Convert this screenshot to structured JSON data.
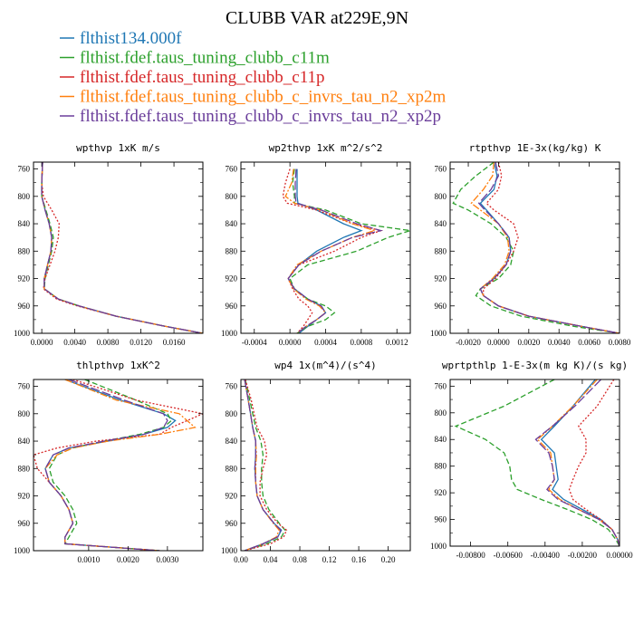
{
  "title": "CLUBB VAR at229E,9N",
  "legend": [
    {
      "label": "flthist134.000f",
      "color": "#1f77b4",
      "dash": ""
    },
    {
      "label": "flthist.fdef.taus_tuning_clubb_c11m",
      "color": "#2ca02c",
      "dash": "6,3"
    },
    {
      "label": "flthist.fdef.taus_tuning_clubb_c11p",
      "color": "#d62728",
      "dash": "2,2"
    },
    {
      "label": "flthist.fdef.taus_tuning_clubb_c_invrs_tau_n2_xp2m",
      "color": "#ff7f0e",
      "dash": "8,2,2,2"
    },
    {
      "label": "flthist.fdef.taus_tuning_clubb_c_invrs_tau_n2_xp2p",
      "color": "#6a3d9a",
      "dash": "10,3"
    }
  ],
  "chart_data": [
    {
      "type": "line",
      "title": "wpthvp  1xK m/s",
      "xlim": [
        -0.001,
        0.0195
      ],
      "ylim": [
        1000,
        750
      ],
      "xticks": [
        "0.0000",
        "0.0040",
        "0.0080",
        "0.0120",
        "0.0160"
      ],
      "yticks": [
        "760",
        "800",
        "840",
        "880",
        "920",
        "960",
        "1000"
      ],
      "y": [
        750,
        780,
        800,
        820,
        840,
        860,
        880,
        900,
        920,
        935,
        950,
        960,
        975,
        990,
        1000
      ],
      "series": [
        {
          "name": "flthist134.000f",
          "x": [
            0.0001,
            0.0,
            0.0,
            0.0004,
            0.0009,
            0.0012,
            0.0011,
            0.0007,
            0.0003,
            0.0003,
            0.002,
            0.0045,
            0.009,
            0.015,
            0.0195
          ]
        },
        {
          "name": "flthist.fdef.taus_tuning_clubb_c11m",
          "x": [
            0.0001,
            0.0,
            0.0,
            0.0005,
            0.001,
            0.0014,
            0.0012,
            0.0008,
            0.0004,
            0.0003,
            0.002,
            0.0045,
            0.009,
            0.015,
            0.0195
          ]
        },
        {
          "name": "flthist.fdef.taus_tuning_clubb_c11p",
          "x": [
            0.0001,
            0.0,
            0.0002,
            0.0012,
            0.0021,
            0.002,
            0.0016,
            0.001,
            0.0004,
            0.0002,
            0.0018,
            0.0043,
            0.009,
            0.015,
            0.0195
          ]
        },
        {
          "name": "flthist.fdef.taus_tuning_clubb_c_invrs_tau_n2_xp2m",
          "x": [
            0.0001,
            0.0,
            0.0,
            0.0004,
            0.0009,
            0.0012,
            0.0011,
            0.0007,
            0.0003,
            0.0003,
            0.002,
            0.0045,
            0.009,
            0.015,
            0.0195
          ]
        },
        {
          "name": "flthist.fdef.taus_tuning_clubb_c_invrs_tau_n2_xp2p",
          "x": [
            0.0001,
            0.0,
            0.0,
            0.0004,
            0.0009,
            0.0012,
            0.0011,
            0.0007,
            0.0003,
            0.0003,
            0.002,
            0.0045,
            0.009,
            0.015,
            0.0195
          ]
        }
      ]
    },
    {
      "type": "line",
      "title": "wp2thvp  1xK m^2/s^2",
      "xlim": [
        -0.00055,
        0.00135
      ],
      "ylim": [
        1000,
        750
      ],
      "xticks": [
        "-0.0004",
        "0.0000",
        "0.0004",
        "0.0008",
        "0.0012"
      ],
      "yticks": [
        "760",
        "800",
        "840",
        "880",
        "920",
        "960",
        "1000"
      ],
      "y": [
        760,
        780,
        800,
        810,
        820,
        840,
        850,
        860,
        880,
        900,
        920,
        935,
        950,
        960,
        970,
        980,
        990,
        1000
      ],
      "series": [
        {
          "name": "flthist134.000f",
          "x": [
            8e-05,
            8e-05,
            8e-05,
            9e-05,
            0.0003,
            0.0006,
            0.0008,
            0.0006,
            0.0003,
            0.0001,
            -2e-05,
            5e-05,
            0.0002,
            0.00035,
            0.0004,
            0.0003,
            0.0002,
            0.0001
          ]
        },
        {
          "name": "flthist.fdef.taus_tuning_clubb_c11m",
          "x": [
            5e-05,
            3e-05,
            5e-05,
            5e-05,
            0.0004,
            0.0008,
            0.00135,
            0.0011,
            0.00075,
            0.0002,
            0.0,
            5e-05,
            0.0002,
            0.0004,
            0.0005,
            0.0004,
            0.0002,
            8e-05
          ]
        },
        {
          "name": "flthist.fdef.taus_tuning_clubb_c11p",
          "x": [
            0.0,
            -5e-05,
            -8e-05,
            -3e-05,
            0.0003,
            0.0007,
            0.00102,
            0.0008,
            0.0005,
            0.0001,
            -2e-05,
            3e-05,
            0.0001,
            0.0002,
            0.00025,
            0.0002,
            0.00015,
            8e-05
          ]
        },
        {
          "name": "flthist.fdef.taus_tuning_clubb_c_invrs_tau_n2_xp2m",
          "x": [
            4e-05,
            2e-05,
            -5e-05,
            5e-05,
            0.00035,
            0.0007,
            0.00095,
            0.0007,
            0.00035,
            8e-05,
            -2e-05,
            4e-05,
            0.00018,
            0.00033,
            0.0004,
            0.0003,
            0.00018,
            8e-05
          ]
        },
        {
          "name": "flthist.fdef.taus_tuning_clubb_c_invrs_tau_n2_xp2p",
          "x": [
            7e-05,
            6e-05,
            6e-05,
            7e-05,
            0.00035,
            0.00075,
            0.00102,
            0.0007,
            0.00035,
            0.0001,
            -2e-05,
            5e-05,
            0.0002,
            0.00035,
            0.0004,
            0.0003,
            0.00018,
            8e-05
          ]
        }
      ]
    },
    {
      "type": "line",
      "title": "rtpthvp  1E-3x(kg/kg) K",
      "xlim": [
        -0.0032,
        0.008
      ],
      "ylim": [
        1000,
        750
      ],
      "xticks": [
        "-0.0020",
        "0.0000",
        "0.0020",
        "0.0040",
        "0.0060",
        "0.0080"
      ],
      "yticks": [
        "760",
        "800",
        "840",
        "880",
        "920",
        "960",
        "1000"
      ],
      "y": [
        750,
        770,
        790,
        810,
        820,
        840,
        860,
        880,
        900,
        920,
        935,
        945,
        960,
        975,
        990,
        1000
      ],
      "series": [
        {
          "name": "flthist134.000f",
          "x": [
            -0.0003,
            -0.0001,
            -0.0003,
            -0.0012,
            -0.0008,
            0.0,
            0.0007,
            0.0008,
            0.0005,
            -0.0003,
            -0.0012,
            -0.001,
            0.0,
            0.002,
            0.0055,
            0.008
          ]
        },
        {
          "name": "flthist.fdef.taus_tuning_clubb_c11m",
          "x": [
            -0.0003,
            -0.0015,
            -0.0025,
            -0.003,
            -0.002,
            -0.0005,
            0.0005,
            0.001,
            0.0008,
            0.0,
            -0.0012,
            -0.0015,
            -0.0005,
            0.0015,
            0.005,
            0.008
          ]
        },
        {
          "name": "flthist.fdef.taus_tuning_clubb_c11p",
          "x": [
            0.0,
            0.0002,
            0.0,
            -0.0008,
            -0.0003,
            0.001,
            0.0013,
            0.001,
            0.0005,
            -0.0002,
            -0.001,
            -0.001,
            0.0,
            0.002,
            0.0055,
            0.008
          ]
        },
        {
          "name": "flthist.fdef.taus_tuning_clubb_c_invrs_tau_n2_xp2m",
          "x": [
            -0.0003,
            -0.0004,
            -0.001,
            -0.0018,
            -0.0012,
            0.0,
            0.0006,
            0.0007,
            0.0004,
            -0.0004,
            -0.0012,
            -0.001,
            0.0,
            0.002,
            0.0055,
            0.008
          ]
        },
        {
          "name": "flthist.fdef.taus_tuning_clubb_c_invrs_tau_n2_xp2p",
          "x": [
            -0.0002,
            0.0,
            -0.0005,
            -0.0013,
            -0.0009,
            0.0,
            0.0007,
            0.0008,
            0.0005,
            -0.0003,
            -0.0012,
            -0.001,
            0.0,
            0.002,
            0.0055,
            0.008
          ]
        }
      ]
    },
    {
      "type": "line",
      "title": "thlpthvp  1xK^2",
      "xlim": [
        -0.0004,
        0.0039
      ],
      "ylim": [
        1000,
        750
      ],
      "xticks": [
        "0.0010",
        "0.0020",
        "0.0030"
      ],
      "yticks": [
        "760",
        "800",
        "840",
        "880",
        "920",
        "960",
        "1000"
      ],
      "y": [
        750,
        780,
        800,
        810,
        820,
        830,
        840,
        850,
        860,
        880,
        900,
        920,
        940,
        960,
        980,
        990,
        1000
      ],
      "series": [
        {
          "name": "flthist134.000f",
          "x": [
            0.0004,
            0.0018,
            0.0029,
            0.0032,
            0.003,
            0.0024,
            0.0015,
            0.0005,
            0.0001,
            -0.0001,
            0.0,
            0.0003,
            0.0005,
            0.0006,
            0.0004,
            0.0004,
            0.0028
          ]
        },
        {
          "name": "flthist.fdef.taus_tuning_clubb_c11m",
          "x": [
            0.0009,
            0.0022,
            0.003,
            0.0031,
            0.0029,
            0.0023,
            0.0014,
            0.0006,
            0.0002,
            0.0,
            0.0001,
            0.0004,
            0.0006,
            0.0007,
            0.0005,
            0.0004,
            0.0028
          ]
        },
        {
          "name": "flthist.fdef.taus_tuning_clubb_c11p",
          "x": [
            0.0006,
            0.0022,
            0.0039,
            0.0035,
            0.0031,
            0.0028,
            0.0012,
            0.0002,
            -0.0004,
            -0.0003,
            0.0,
            0.0003,
            0.0005,
            0.0006,
            0.0004,
            0.0004,
            0.0028
          ]
        },
        {
          "name": "flthist.fdef.taus_tuning_clubb_c_invrs_tau_n2_xp2m",
          "x": [
            0.0004,
            0.0017,
            0.0033,
            0.0035,
            0.0037,
            0.0028,
            0.0015,
            0.0006,
            0.0002,
            -0.0001,
            0.0,
            0.0003,
            0.0005,
            0.0006,
            0.0004,
            0.0004,
            0.0028
          ]
        },
        {
          "name": "flthist.fdef.taus_tuning_clubb_c_invrs_tau_n2_xp2p",
          "x": [
            0.0005,
            0.0019,
            0.0029,
            0.003,
            0.0029,
            0.0024,
            0.0014,
            0.0005,
            0.0001,
            -0.0001,
            0.0,
            0.0003,
            0.0005,
            0.0006,
            0.0004,
            0.0004,
            0.0028
          ]
        }
      ]
    },
    {
      "type": "line",
      "title": "wp4  1x(m^4)/(s^4)",
      "xlim": [
        0.0,
        0.23
      ],
      "ylim": [
        1000,
        750
      ],
      "xticks": [
        "0.00",
        "0.04",
        "0.08",
        "0.12",
        "0.16",
        "0.20"
      ],
      "yticks": [
        "760",
        "800",
        "840",
        "880",
        "920",
        "960",
        "1000"
      ],
      "y": [
        750,
        780,
        800,
        820,
        840,
        860,
        880,
        900,
        920,
        940,
        960,
        970,
        980,
        990,
        1000
      ],
      "series": [
        {
          "name": "flthist134.000f",
          "x": [
            0.005,
            0.01,
            0.013,
            0.016,
            0.02,
            0.02,
            0.019,
            0.02,
            0.022,
            0.03,
            0.045,
            0.055,
            0.05,
            0.03,
            0.005
          ]
        },
        {
          "name": "flthist.fdef.taus_tuning_clubb_c11m",
          "x": [
            0.006,
            0.012,
            0.016,
            0.02,
            0.027,
            0.03,
            0.028,
            0.028,
            0.03,
            0.038,
            0.052,
            0.06,
            0.055,
            0.035,
            0.005
          ]
        },
        {
          "name": "flthist.fdef.taus_tuning_clubb_c11p",
          "x": [
            0.006,
            0.014,
            0.018,
            0.022,
            0.032,
            0.035,
            0.03,
            0.026,
            0.026,
            0.035,
            0.05,
            0.062,
            0.058,
            0.04,
            0.005
          ]
        },
        {
          "name": "flthist.fdef.taus_tuning_clubb_c_invrs_tau_n2_xp2m",
          "x": [
            0.005,
            0.01,
            0.013,
            0.016,
            0.02,
            0.021,
            0.02,
            0.02,
            0.022,
            0.03,
            0.044,
            0.052,
            0.048,
            0.03,
            0.005
          ]
        },
        {
          "name": "flthist.fdef.taus_tuning_clubb_c_invrs_tau_n2_xp2p",
          "x": [
            0.005,
            0.01,
            0.013,
            0.016,
            0.02,
            0.02,
            0.019,
            0.02,
            0.022,
            0.03,
            0.045,
            0.054,
            0.05,
            0.03,
            0.005
          ]
        }
      ]
    },
    {
      "type": "line",
      "title": "wprtpthlp  1-E-3x(m kg K)/(s kg)",
      "xlim": [
        -0.0091,
        0.0
      ],
      "ylim": [
        1000,
        750
      ],
      "xticks": [
        "-0.00800",
        "-0.00600",
        "-0.00400",
        "-0.00200",
        "0.00000"
      ],
      "yticks": [
        "760",
        "800",
        "840",
        "880",
        "920",
        "960",
        "1000"
      ],
      "y": [
        750,
        790,
        820,
        840,
        860,
        880,
        900,
        915,
        930,
        945,
        960,
        975,
        990,
        1000
      ],
      "series": [
        {
          "name": "flthist134.000f",
          "x": [
            -0.0013,
            -0.0025,
            -0.0035,
            -0.0042,
            -0.0035,
            -0.0034,
            -0.0033,
            -0.0036,
            -0.003,
            -0.002,
            -0.001,
            -0.0004,
            -0.0001,
            0.0
          ]
        },
        {
          "name": "flthist.fdef.taus_tuning_clubb_c11m",
          "x": [
            -0.0035,
            -0.0062,
            -0.0088,
            -0.0072,
            -0.0062,
            -0.0059,
            -0.0058,
            -0.0055,
            -0.0042,
            -0.0028,
            -0.0015,
            -0.0006,
            -0.0002,
            0.0
          ]
        },
        {
          "name": "flthist.fdef.taus_tuning_clubb_c11p",
          "x": [
            -0.0003,
            -0.0012,
            -0.0022,
            -0.0018,
            -0.0018,
            -0.0022,
            -0.0025,
            -0.0027,
            -0.0025,
            -0.0018,
            -0.001,
            -0.0004,
            -0.0001,
            0.0
          ]
        },
        {
          "name": "flthist.fdef.taus_tuning_clubb_c_invrs_tau_n2_xp2m",
          "x": [
            -0.0012,
            -0.0025,
            -0.0036,
            -0.0044,
            -0.0037,
            -0.0036,
            -0.0035,
            -0.0038,
            -0.0032,
            -0.0022,
            -0.0011,
            -0.0004,
            -0.0001,
            0.0
          ]
        },
        {
          "name": "flthist.fdef.taus_tuning_clubb_c_invrs_tau_n2_xp2p",
          "x": [
            -0.001,
            -0.0024,
            -0.0036,
            -0.0045,
            -0.0038,
            -0.0036,
            -0.0035,
            -0.0039,
            -0.0033,
            -0.0022,
            -0.0011,
            -0.0004,
            -0.0001,
            0.0
          ]
        }
      ]
    }
  ]
}
